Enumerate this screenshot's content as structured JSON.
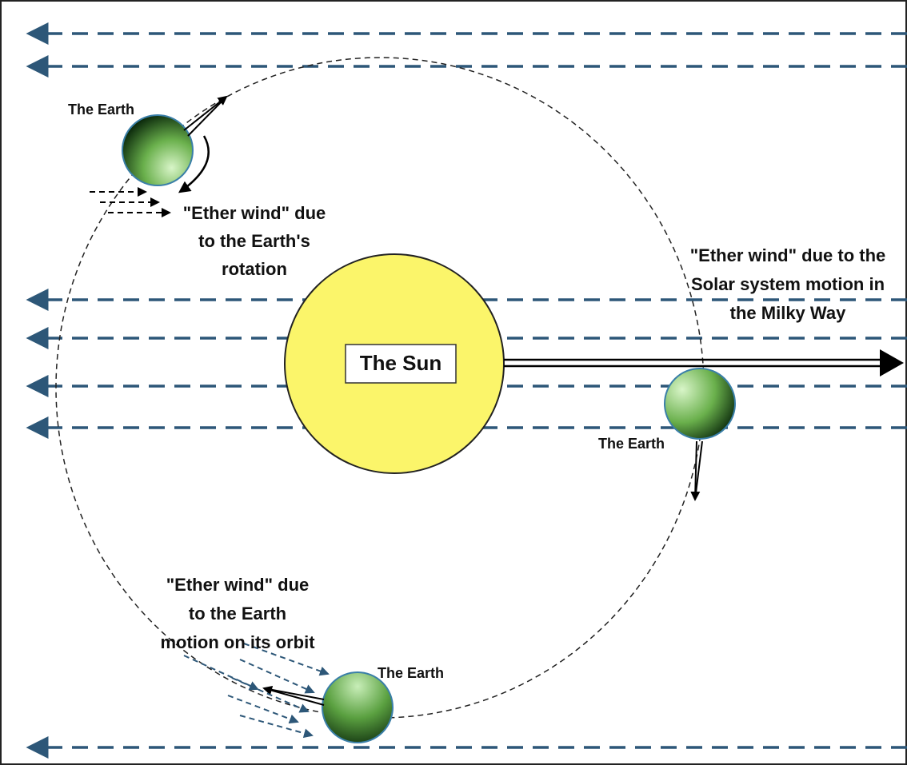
{
  "sun": {
    "label": "The Sun"
  },
  "earths": [
    {
      "label": "The Earth"
    },
    {
      "label": "The Earth"
    },
    {
      "label": "The Earth"
    }
  ],
  "annotations": [
    {
      "lines": [
        "\"Ether wind\" due",
        "to the Earth's",
        "rotation"
      ]
    },
    {
      "lines": [
        "\"Ether wind\" due to the",
        "Solar system motion in",
        "the Milky Way"
      ]
    },
    {
      "lines": [
        "\"Ether wind\" due",
        "to the Earth",
        "motion on its orbit"
      ]
    }
  ]
}
